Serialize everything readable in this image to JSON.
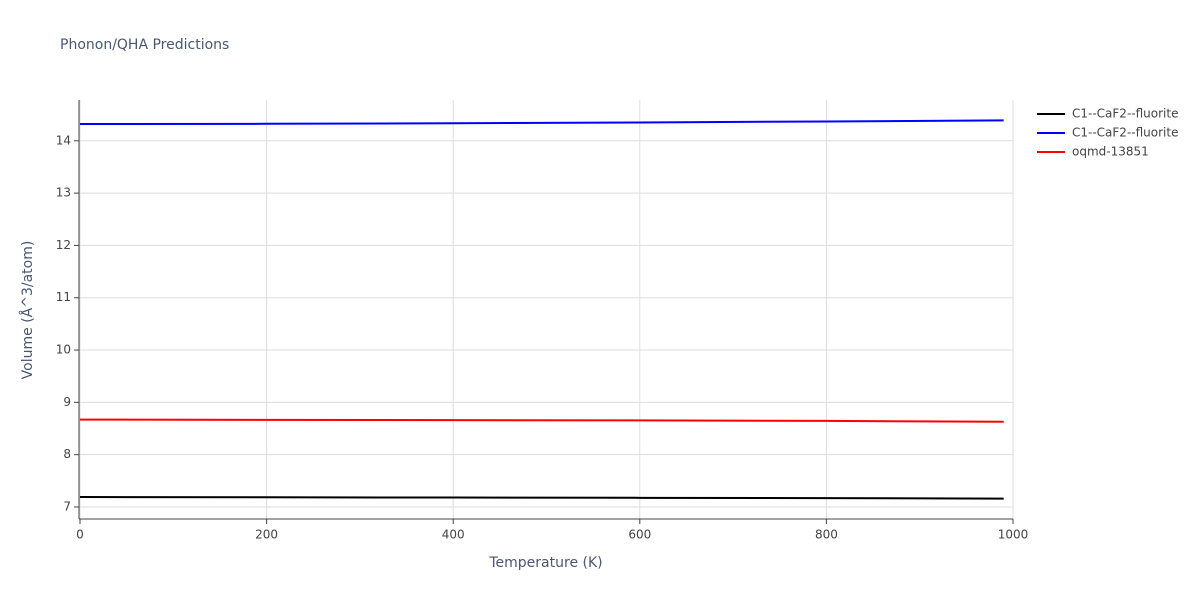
{
  "chart_data": {
    "type": "line",
    "title": "Phonon/QHA Predictions",
    "x_label": "Temperature (K)",
    "y_label": "Volume (Å^3/atom)",
    "x": [
      0,
      200,
      400,
      600,
      800,
      990
    ],
    "series": [
      {
        "name": "C1--CaF2--fluorite",
        "color": "#000000",
        "values": [
          7.19,
          7.185,
          7.18,
          7.175,
          7.17,
          7.16
        ]
      },
      {
        "name": "C1--CaF2--fluorite",
        "color": "#0000ff",
        "values": [
          14.32,
          14.325,
          14.335,
          14.35,
          14.37,
          14.39
        ]
      },
      {
        "name": "oqmd-13851",
        "color": "#ff0000",
        "values": [
          8.67,
          8.665,
          8.66,
          8.655,
          8.645,
          8.63
        ]
      }
    ],
    "xlim": [
      0,
      1000
    ],
    "xticks": [
      0,
      200,
      400,
      600,
      800,
      1000
    ],
    "ylim": [
      6.77,
      14.78
    ],
    "yticks": [
      7,
      8,
      9,
      10,
      11,
      12,
      13,
      14
    ],
    "grid": true,
    "legend": "right"
  }
}
